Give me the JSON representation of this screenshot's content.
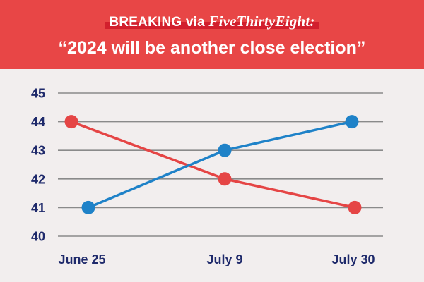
{
  "banner": {
    "prefix": "BREAKING via ",
    "source": "FiveThirtyEight:",
    "headline": "“2024 will be another close election”"
  },
  "colors": {
    "banner_bg": "#e84646",
    "highlight": "#d21f2d",
    "red_series": "#e54545",
    "blue_series": "#1f82c8",
    "axis_text": "#1f2a6b",
    "grid": "#8a8a8a"
  },
  "chart_data": {
    "type": "line",
    "title": "",
    "xlabel": "",
    "ylabel": "",
    "categories": [
      "June 25",
      "July 9",
      "July 30"
    ],
    "ylim": [
      40,
      45
    ],
    "yticks": [
      40,
      41,
      42,
      43,
      44,
      45
    ],
    "grid": true,
    "legend": "none",
    "series": [
      {
        "color": "#e54545",
        "values": [
          44,
          42,
          41
        ]
      },
      {
        "color": "#1f82c8",
        "values": [
          41,
          43,
          44
        ]
      }
    ]
  }
}
